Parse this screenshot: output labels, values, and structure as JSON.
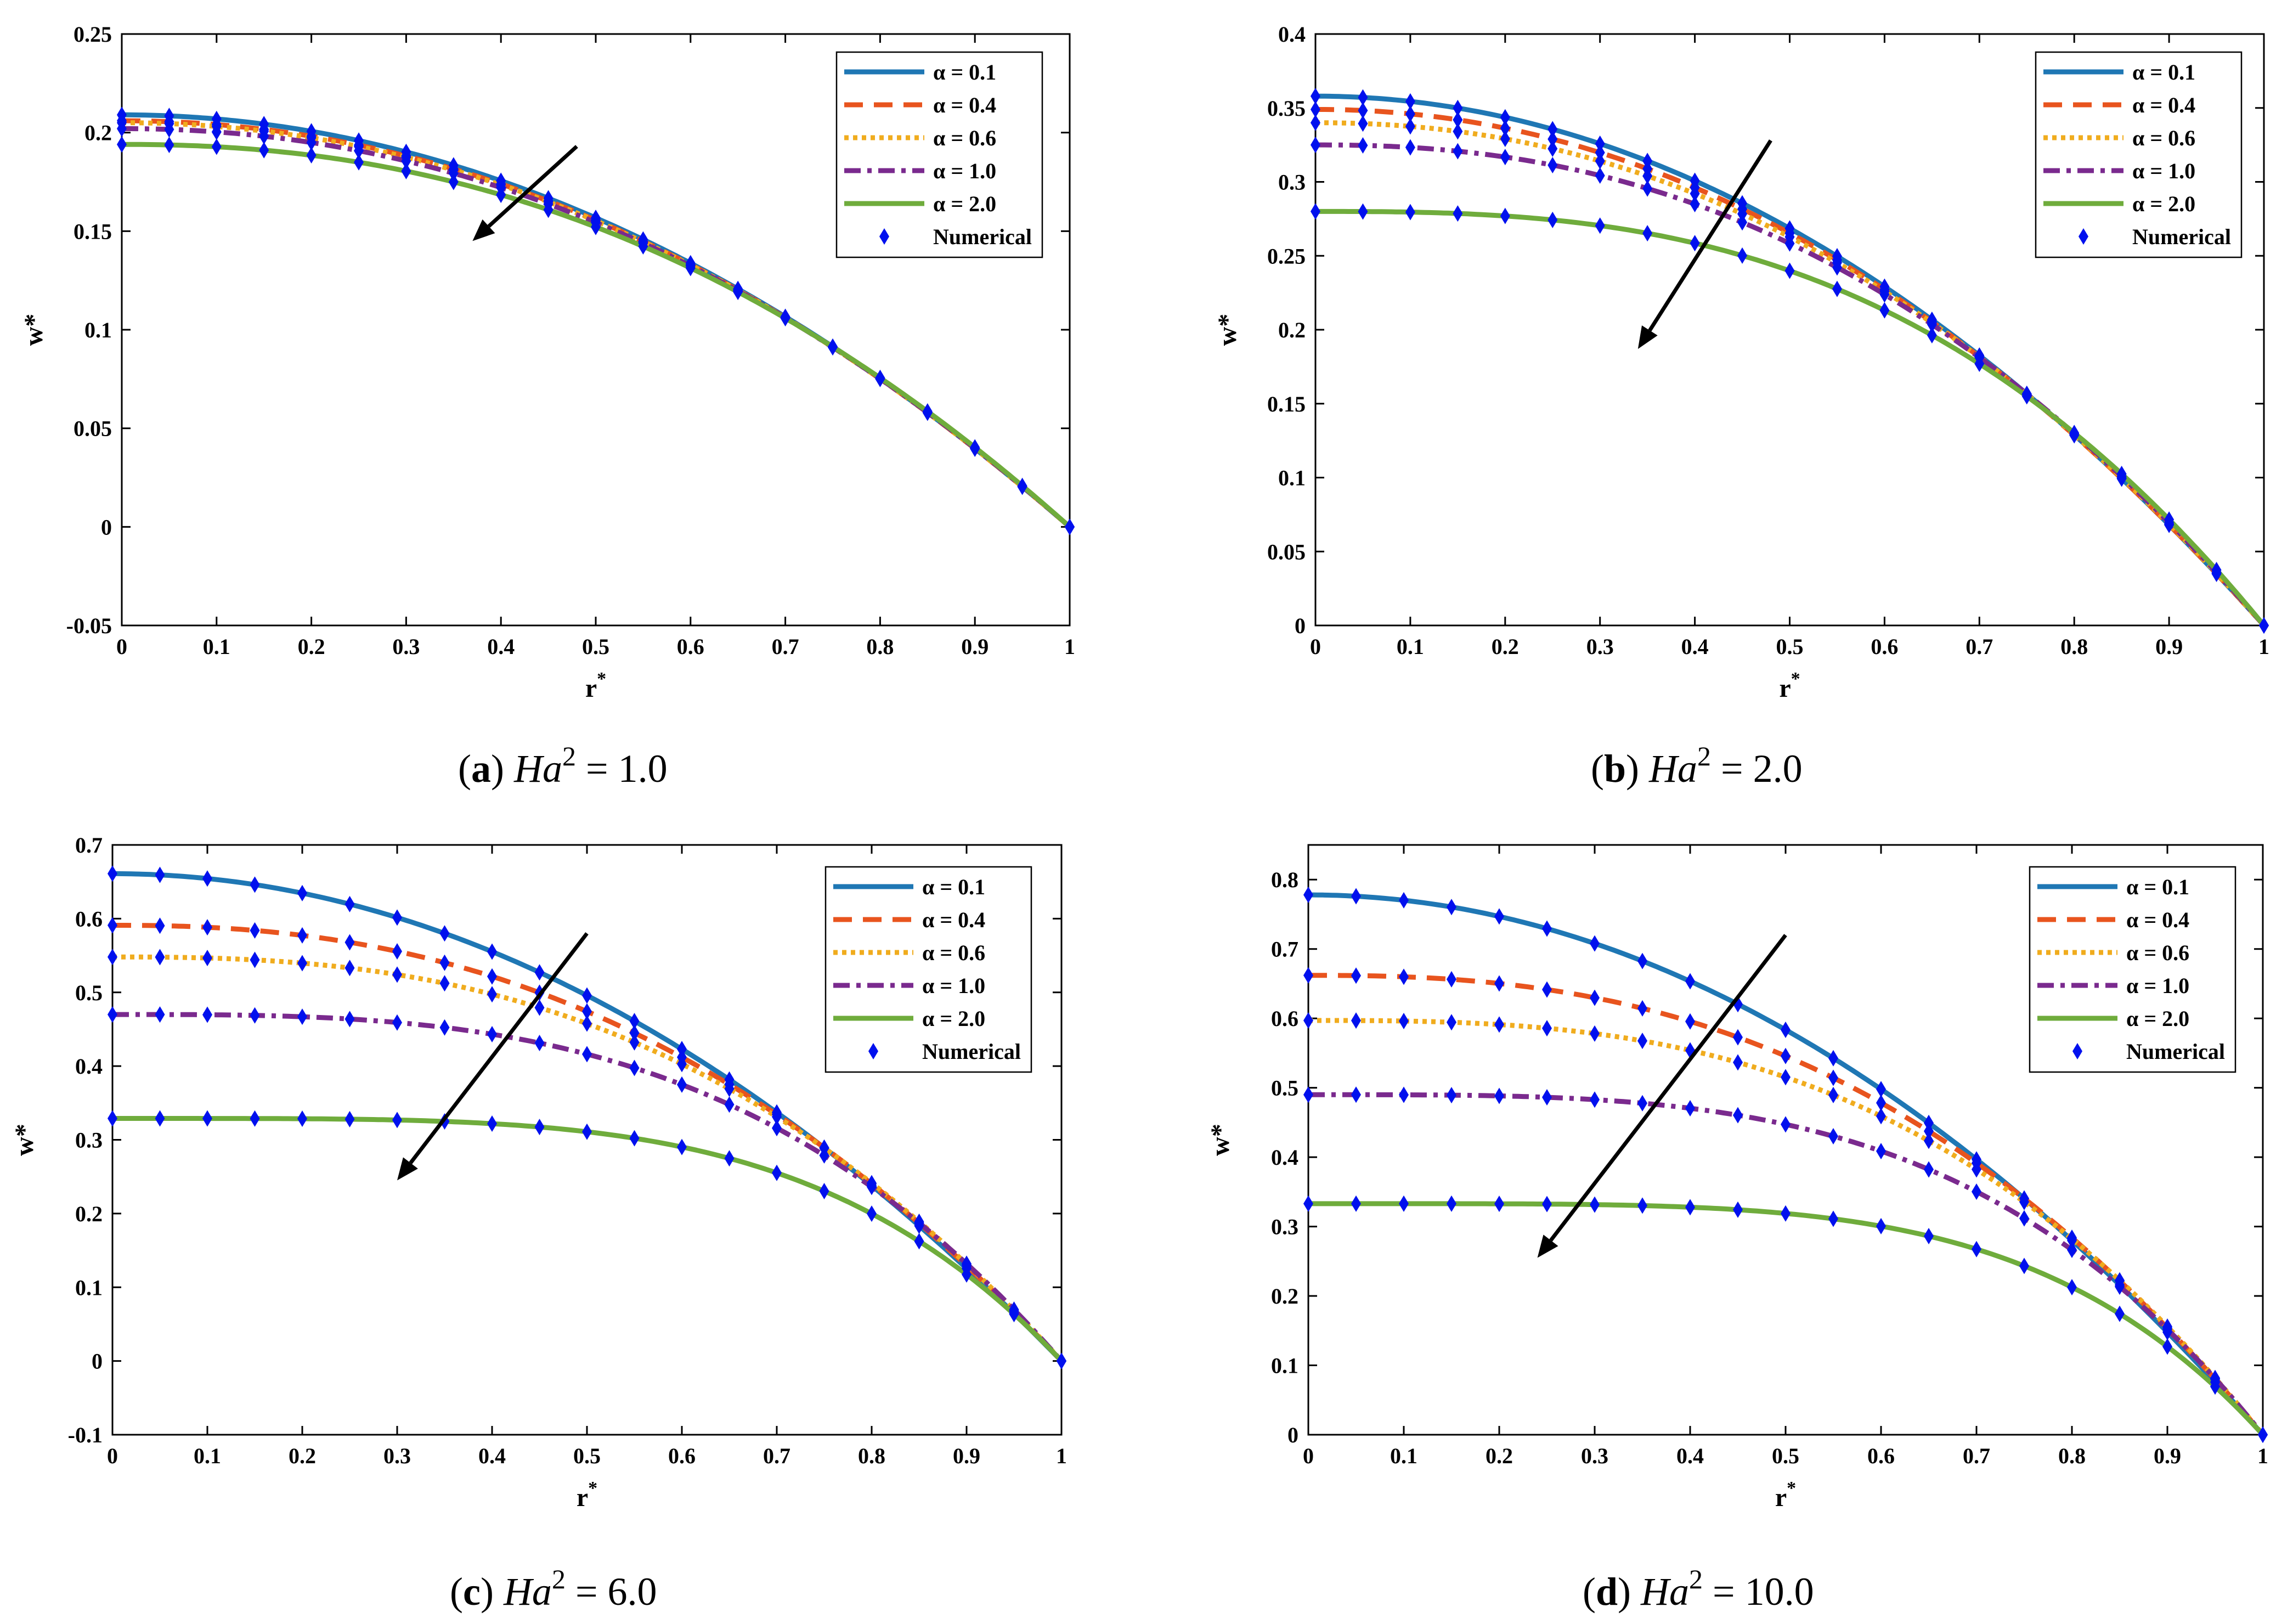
{
  "colors": {
    "a01": "#1f77b4",
    "a04": "#e8541e",
    "a06": "#f0ac1e",
    "a10": "#7a2a8e",
    "a20": "#6fac3c",
    "numerical": "#0010ee",
    "arrow": "#000000"
  },
  "legend": {
    "alpha_symbol": "α",
    "entries": [
      " = 0.1",
      " = 0.4",
      " = 0.6",
      " = 1.0",
      " = 2.0"
    ],
    "numerical": "Numerical"
  },
  "chart_data": [
    {
      "type": "line",
      "caption": {
        "letter": "a",
        "var": "Ha",
        "exp": "2",
        "value": " = 1.0"
      },
      "xlabel": "r",
      "xlabel_sup": "*",
      "ylabel": "w*",
      "xlim": [
        0,
        1
      ],
      "ylim": [
        -0.05,
        0.25
      ],
      "xticks": [
        0,
        0.1,
        0.2,
        0.3,
        0.4,
        0.5,
        0.6,
        0.7,
        0.8,
        0.9,
        1
      ],
      "xtick_labels": [
        "0",
        "0.1",
        "0.2",
        "0.3",
        "0.4",
        "0.5",
        "0.6",
        "0.7",
        "0.8",
        "0.9",
        "1"
      ],
      "yticks": [
        -0.05,
        0,
        0.05,
        0.1,
        0.15,
        0.2,
        0.25
      ],
      "ytick_labels": [
        "-0.05",
        "0",
        "0.05",
        "0.1",
        "0.15",
        "0.2",
        "0.25"
      ],
      "series": [
        {
          "name": "α = 0.1",
          "w0": 0.209
        },
        {
          "name": "α = 0.4",
          "w0": 0.206
        },
        {
          "name": "α = 0.6",
          "w0": 0.205
        },
        {
          "name": "α = 1.0",
          "w0": 0.202
        },
        {
          "name": "α = 2.0",
          "w0": 0.194
        }
      ],
      "arrow": {
        "from": [
          0.48,
          0.193
        ],
        "to": [
          0.37,
          0.145
        ]
      }
    },
    {
      "type": "line",
      "caption": {
        "letter": "b",
        "var": "Ha",
        "exp": "2",
        "value": " = 2.0"
      },
      "xlabel": "r",
      "xlabel_sup": "*",
      "ylabel": "w*",
      "xlim": [
        0,
        1
      ],
      "ylim": [
        0,
        0.4
      ],
      "xticks": [
        0,
        0.1,
        0.2,
        0.3,
        0.4,
        0.5,
        0.6,
        0.7,
        0.8,
        0.9,
        1
      ],
      "xtick_labels": [
        "0",
        "0.1",
        "0.2",
        "0.3",
        "0.4",
        "0.5",
        "0.6",
        "0.7",
        "0.8",
        "0.9",
        "1"
      ],
      "yticks": [
        0,
        0.05,
        0.1,
        0.15,
        0.2,
        0.25,
        0.3,
        0.35,
        0.4
      ],
      "ytick_labels": [
        "0",
        "0.05",
        "0.1",
        "0.15",
        "0.2",
        "0.25",
        "0.3",
        "0.35",
        "0.4"
      ],
      "series": [
        {
          "name": "α = 0.1",
          "w0": 0.358
        },
        {
          "name": "α = 0.4",
          "w0": 0.349
        },
        {
          "name": "α = 0.6",
          "w0": 0.34
        },
        {
          "name": "α = 1.0",
          "w0": 0.325
        },
        {
          "name": "α = 2.0",
          "w0": 0.28
        }
      ],
      "arrow": {
        "from": [
          0.48,
          0.328
        ],
        "to": [
          0.34,
          0.187
        ]
      }
    },
    {
      "type": "line",
      "caption": {
        "letter": "c",
        "var": "Ha",
        "exp": "2",
        "value": " = 6.0"
      },
      "xlabel": "r",
      "xlabel_sup": "*",
      "ylabel": "w*",
      "xlim": [
        0,
        1
      ],
      "ylim": [
        -0.1,
        0.7
      ],
      "xticks": [
        0,
        0.1,
        0.2,
        0.3,
        0.4,
        0.5,
        0.6,
        0.7,
        0.8,
        0.9,
        1
      ],
      "xtick_labels": [
        "0",
        "0.1",
        "0.2",
        "0.3",
        "0.4",
        "0.5",
        "0.6",
        "0.7",
        "0.8",
        "0.9",
        "1"
      ],
      "yticks": [
        -0.1,
        0,
        0.1,
        0.2,
        0.3,
        0.4,
        0.5,
        0.6,
        0.7
      ],
      "ytick_labels": [
        "-0.1",
        "0",
        "0.1",
        "0.2",
        "0.3",
        "0.4",
        "0.5",
        "0.6",
        "0.7"
      ],
      "series": [
        {
          "name": "α = 0.1",
          "w0": 0.661
        },
        {
          "name": "α = 0.4",
          "w0": 0.591
        },
        {
          "name": "α = 0.6",
          "w0": 0.548
        },
        {
          "name": "α = 1.0",
          "w0": 0.47
        },
        {
          "name": "α = 2.0",
          "w0": 0.329
        }
      ],
      "arrow": {
        "from": [
          0.5,
          0.58
        ],
        "to": [
          0.3,
          0.245
        ]
      }
    },
    {
      "type": "line",
      "caption": {
        "letter": "d",
        "var": "Ha",
        "exp": "2",
        "value": " = 10.0"
      },
      "xlabel": "r",
      "xlabel_sup": "*",
      "ylabel": "w*",
      "xlim": [
        0,
        1
      ],
      "ylim": [
        0,
        0.85
      ],
      "xticks": [
        0,
        0.1,
        0.2,
        0.3,
        0.4,
        0.5,
        0.6,
        0.7,
        0.8,
        0.9,
        1
      ],
      "xtick_labels": [
        "0",
        "0.1",
        "0.2",
        "0.3",
        "0.4",
        "0.5",
        "0.6",
        "0.7",
        "0.8",
        "0.9",
        "1"
      ],
      "yticks": [
        0,
        0.1,
        0.2,
        0.3,
        0.4,
        0.5,
        0.6,
        0.7,
        0.8
      ],
      "ytick_labels": [
        "0",
        "0.1",
        "0.2",
        "0.3",
        "0.4",
        "0.5",
        "0.6",
        "0.7",
        "0.8"
      ],
      "series": [
        {
          "name": "α = 0.1",
          "w0": 0.778
        },
        {
          "name": "α = 0.4",
          "w0": 0.662
        },
        {
          "name": "α = 0.6",
          "w0": 0.597
        },
        {
          "name": "α = 1.0",
          "w0": 0.49
        },
        {
          "name": "α = 2.0",
          "w0": 0.333
        }
      ],
      "arrow": {
        "from": [
          0.5,
          0.72
        ],
        "to": [
          0.24,
          0.255
        ]
      }
    }
  ]
}
